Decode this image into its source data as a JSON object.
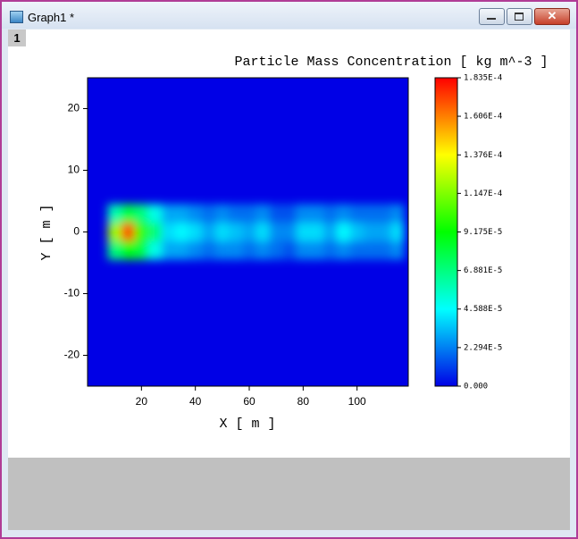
{
  "window": {
    "title": "Graph1 *",
    "layer_tab": "1"
  },
  "chart_data": {
    "type": "heatmap",
    "title": "Particle Mass Concentration [ kg m^-3 ]",
    "xlabel": "X [ m ]",
    "ylabel": "Y [ m ]",
    "x": [
      10,
      15,
      20,
      25,
      30,
      35,
      40,
      45,
      50,
      55,
      60,
      65,
      70,
      75,
      80,
      85,
      90,
      95,
      100,
      105,
      110,
      115
    ],
    "y": [
      -3,
      0,
      3
    ],
    "z": [
      [
        7e-05,
        9e-05,
        8e-05,
        5e-05,
        3e-05,
        3e-05,
        2.5e-05,
        2e-05,
        2.5e-05,
        2.5e-05,
        2e-05,
        2.5e-05,
        2e-05,
        1.5e-05,
        2.5e-05,
        2.5e-05,
        2e-05,
        2.5e-05,
        2e-05,
        2e-05,
        2e-05,
        2.5e-05
      ],
      [
        0.00012,
        0.00017,
        0.0001,
        7e-05,
        4e-05,
        4.5e-05,
        4e-05,
        3e-05,
        4e-05,
        3.5e-05,
        3e-05,
        4e-05,
        2.5e-05,
        2.5e-05,
        4e-05,
        4e-05,
        3e-05,
        4.5e-05,
        3.5e-05,
        3e-05,
        3e-05,
        4e-05
      ],
      [
        6e-05,
        8e-05,
        7e-05,
        5e-05,
        3e-05,
        3e-05,
        2.5e-05,
        2e-05,
        2.5e-05,
        2e-05,
        2e-05,
        2.5e-05,
        1.5e-05,
        1.5e-05,
        2.5e-05,
        2.5e-05,
        2e-05,
        2.5e-05,
        2e-05,
        2e-05,
        2e-05,
        2.5e-05
      ]
    ],
    "xlim": [
      0,
      119
    ],
    "ylim": [
      -25,
      25
    ],
    "xticks": [
      20,
      40,
      60,
      80,
      100
    ],
    "yticks": [
      -20,
      -10,
      0,
      10,
      20
    ],
    "colormap": [
      "#0000e6",
      "#00ffff",
      "#00ff00",
      "#ffff00",
      "#ff0000"
    ],
    "colorbar": {
      "lim": [
        0,
        0.0001835
      ],
      "ticks": [
        {
          "value": 0,
          "label": "0.000"
        },
        {
          "value": 2.294e-05,
          "label": "2.294E-5"
        },
        {
          "value": 4.588e-05,
          "label": "4.588E-5"
        },
        {
          "value": 6.881e-05,
          "label": "6.881E-5"
        },
        {
          "value": 9.175e-05,
          "label": "9.175E-5"
        },
        {
          "value": 0.0001147,
          "label": "1.147E-4"
        },
        {
          "value": 0.0001376,
          "label": "1.376E-4"
        },
        {
          "value": 0.0001606,
          "label": "1.606E-4"
        },
        {
          "value": 0.0001835,
          "label": "1.835E-4"
        }
      ]
    }
  }
}
